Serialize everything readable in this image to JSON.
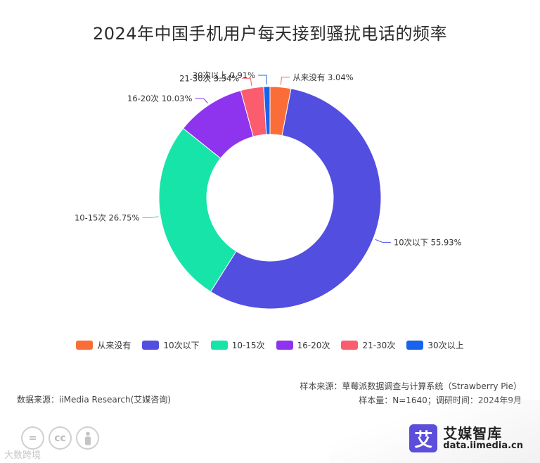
{
  "chart_data": {
    "type": "pie",
    "title": "2024年中国手机用户每天接到骚扰电话的频率",
    "donut": true,
    "start_angle_deg": 0,
    "direction": "clockwise",
    "legend_position": "bottom",
    "slices": [
      {
        "label": "从来没有",
        "value": 3.04,
        "value_label": "3.04%",
        "color": "#fb6d38"
      },
      {
        "label": "10次以下",
        "value": 55.93,
        "value_label": "55.93%",
        "color": "#524ee0"
      },
      {
        "label": "10-15次",
        "value": 26.75,
        "value_label": "26.75%",
        "color": "#16e4a8"
      },
      {
        "label": "16-20次",
        "value": 10.03,
        "value_label": "10.03%",
        "color": "#8e33ee"
      },
      {
        "label": "21-30次",
        "value": 3.34,
        "value_label": "3.34%",
        "color": "#fb5c6e"
      },
      {
        "label": "30次以上",
        "value": 0.91,
        "value_label": "0.91%",
        "color": "#1763ee"
      }
    ]
  },
  "footer": {
    "sample_source": "样本来源：草莓派数据调查与计算系统（Strawberry Pie）",
    "sample_info": "样本量：N=1640；调研时间：2024年9月",
    "data_source": "数据来源：iiMedia Research(艾媒咨询)"
  },
  "license_icons": [
    "=",
    "cc",
    "person-icon"
  ],
  "watermark": "大数跨境",
  "brand": {
    "logo_char": "艾",
    "name": "艾媒智库",
    "url": "data.iimedia.cn"
  }
}
